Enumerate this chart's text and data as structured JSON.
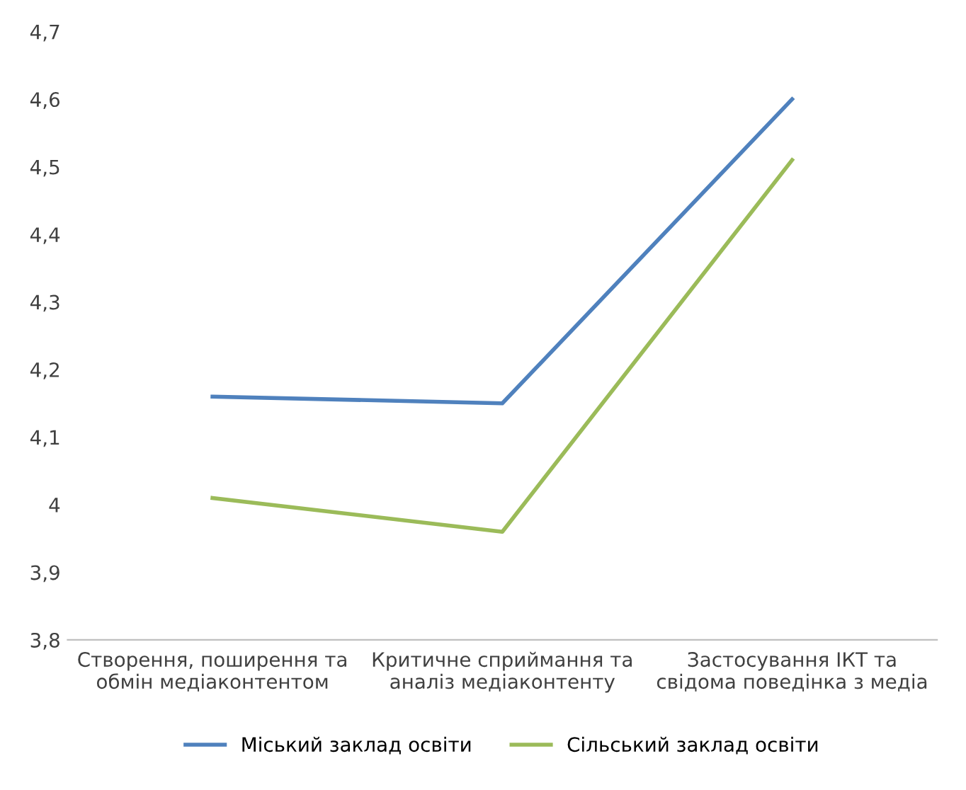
{
  "chart_data": {
    "type": "line",
    "categories": [
      "Створення, поширення та\nобмін медіаконтентом",
      "Критичне сприймання та\nаналіз медіаконтенту",
      "Застосування ІКТ та\nсвідома поведінка з медіа"
    ],
    "series": [
      {
        "name": "Міський заклад освіти",
        "color": "#4f81bd",
        "values": [
          4.16,
          4.15,
          4.6
        ]
      },
      {
        "name": "Сільський заклад освіти",
        "color": "#9bbb59",
        "values": [
          4.01,
          3.96,
          4.51
        ]
      }
    ],
    "ylim": [
      3.8,
      4.7
    ],
    "yticks": [
      {
        "value": 3.8,
        "label": "3,8"
      },
      {
        "value": 3.9,
        "label": "3,9"
      },
      4,
      {
        "value": 4.1,
        "label": "4,1"
      },
      {
        "value": 4.2,
        "label": "4,2"
      },
      {
        "value": 4.3,
        "label": "4,3"
      },
      {
        "value": 4.4,
        "label": "4,4"
      },
      {
        "value": 4.5,
        "label": "4,5"
      },
      {
        "value": 4.6,
        "label": "4,6"
      },
      {
        "value": 4.7,
        "label": "4,7"
      }
    ],
    "grid": false,
    "legend": "bottom",
    "marker": "none",
    "line_style": "solid"
  }
}
